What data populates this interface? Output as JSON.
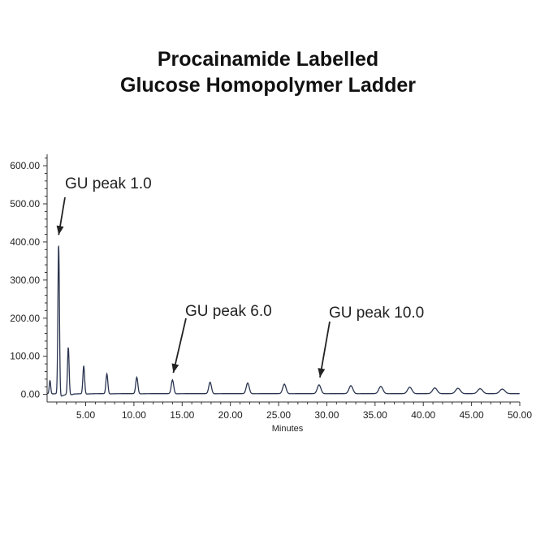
{
  "chart_data": {
    "type": "line",
    "title": [
      "Procainamide Labelled",
      "Glucose Homopolymer Ladder"
    ],
    "xlabel": "Minutes",
    "ylabel": "",
    "xlim": [
      1,
      50
    ],
    "ylim": [
      -20,
      630
    ],
    "x_ticks": [
      "5.00",
      "10.00",
      "15.00",
      "20.00",
      "25.00",
      "30.00",
      "35.00",
      "40.00",
      "45.00",
      "50.00"
    ],
    "x_tick_values": [
      5,
      10,
      15,
      20,
      25,
      30,
      35,
      40,
      45,
      50
    ],
    "y_ticks": [
      "0.00",
      "100.00",
      "200.00",
      "300.00",
      "400.00",
      "500.00",
      "600.00"
    ],
    "y_tick_values": [
      0,
      100,
      200,
      300,
      400,
      500,
      600
    ],
    "baseline": 2,
    "peaks": [
      {
        "x": 1.3,
        "y": 35
      },
      {
        "x": 2.2,
        "y": 398
      },
      {
        "x": 3.2,
        "y": 125
      },
      {
        "x": 4.8,
        "y": 73
      },
      {
        "x": 7.2,
        "y": 52
      },
      {
        "x": 10.3,
        "y": 43
      },
      {
        "x": 14.0,
        "y": 36
      },
      {
        "x": 17.9,
        "y": 30
      },
      {
        "x": 21.8,
        "y": 28
      },
      {
        "x": 25.6,
        "y": 25
      },
      {
        "x": 29.2,
        "y": 23
      },
      {
        "x": 32.5,
        "y": 21
      },
      {
        "x": 35.6,
        "y": 19
      },
      {
        "x": 38.6,
        "y": 17
      },
      {
        "x": 41.2,
        "y": 15
      },
      {
        "x": 43.6,
        "y": 14
      },
      {
        "x": 45.9,
        "y": 13
      },
      {
        "x": 48.2,
        "y": 12
      }
    ],
    "line_color": "#2a3550",
    "annotations": [
      {
        "text": "GU peak 1.0",
        "point_x": 2.2,
        "point_y": 410
      },
      {
        "text": "GU peak 6.0",
        "point_x": 14.0,
        "point_y": 48
      },
      {
        "text": "GU peak 10.0",
        "point_x": 29.2,
        "point_y": 36
      }
    ]
  }
}
